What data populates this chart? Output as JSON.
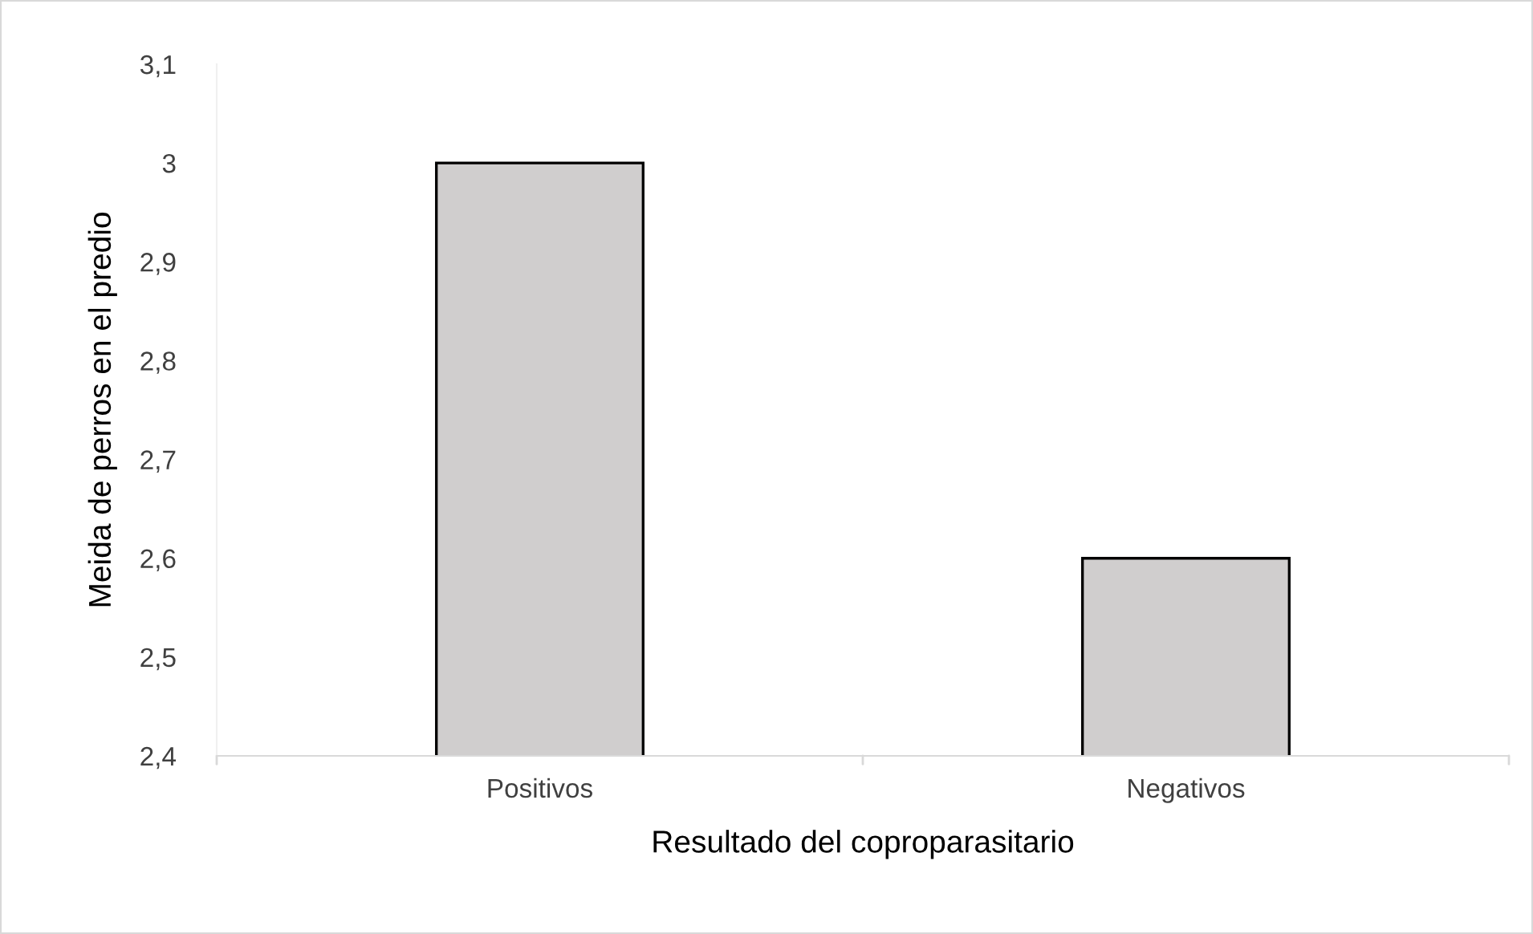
{
  "chart_data": {
    "type": "bar",
    "xlabel": "Resultado del coproparasitario",
    "ylabel": "Meida de perros en el predio",
    "categories": [
      "Positivos",
      "Negativos"
    ],
    "values": [
      3.0,
      2.6
    ],
    "color": "#d0cece",
    "ylim": [
      2.4,
      3.1
    ],
    "yticks": [
      {
        "value": 2.4,
        "label": "2,4"
      },
      {
        "value": 2.5,
        "label": "2,5"
      },
      {
        "value": 2.6,
        "label": "2,6"
      },
      {
        "value": 2.7,
        "label": "2,7"
      },
      {
        "value": 2.8,
        "label": "2,8"
      },
      {
        "value": 2.9,
        "label": "2,9"
      },
      {
        "value": 3.0,
        "label": "3"
      },
      {
        "value": 3.1,
        "label": "3,1"
      }
    ],
    "grid": false
  }
}
